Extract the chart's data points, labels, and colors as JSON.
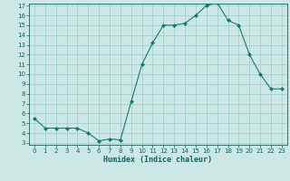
{
  "title": "",
  "xlabel": "Humidex (Indice chaleur)",
  "ylabel": "",
  "x": [
    0,
    1,
    2,
    3,
    4,
    5,
    6,
    7,
    8,
    9,
    10,
    11,
    12,
    13,
    14,
    15,
    16,
    17,
    18,
    19,
    20,
    21,
    22,
    23
  ],
  "y": [
    5.5,
    4.5,
    4.5,
    4.5,
    4.5,
    4.0,
    3.2,
    3.4,
    3.3,
    7.2,
    11.0,
    13.2,
    15.0,
    15.0,
    15.2,
    16.0,
    17.0,
    17.3,
    15.5,
    15.0,
    12.0,
    10.0,
    8.5,
    8.5
  ],
  "line_color": "#1a7a6a",
  "marker_color": "#1a7a6a",
  "bg_color": "#cce8e4",
  "grid_color": "#9ececa",
  "axis_color": "#1a5f5a",
  "ylim_min": 3,
  "ylim_max": 17,
  "xlim_min": -0.5,
  "xlim_max": 23.5,
  "yticks": [
    3,
    4,
    5,
    6,
    7,
    8,
    9,
    10,
    11,
    12,
    13,
    14,
    15,
    16,
    17
  ],
  "xticks": [
    0,
    1,
    2,
    3,
    4,
    5,
    6,
    7,
    8,
    9,
    10,
    11,
    12,
    13,
    14,
    15,
    16,
    17,
    18,
    19,
    20,
    21,
    22,
    23
  ],
  "tick_fontsize": 5.0,
  "xlabel_fontsize": 6.0,
  "linewidth": 0.8,
  "markersize": 2.0
}
